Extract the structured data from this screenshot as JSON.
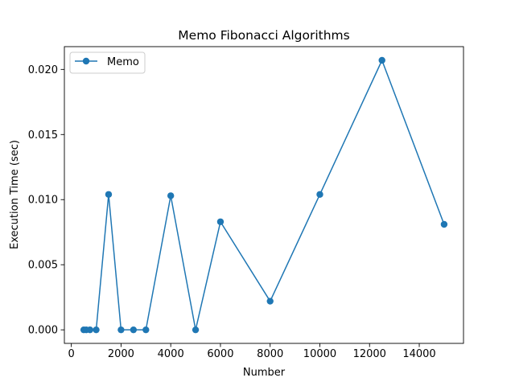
{
  "chart_data": {
    "type": "line",
    "title": "Memo Fibonacci Algorithms",
    "xlabel": "Number",
    "ylabel": "Execution Time (sec)",
    "xlim": [
      -280,
      15780
    ],
    "ylim": [
      -0.00104,
      0.02175
    ],
    "xticks": [
      0,
      2000,
      4000,
      6000,
      8000,
      10000,
      12000,
      14000
    ],
    "xtick_labels": [
      "0",
      "2000",
      "4000",
      "6000",
      "8000",
      "10000",
      "12000",
      "14000"
    ],
    "yticks": [
      0.0,
      0.005,
      0.01,
      0.015,
      0.02
    ],
    "ytick_labels": [
      "0.000",
      "0.005",
      "0.010",
      "0.015",
      "0.020"
    ],
    "grid": false,
    "legend_position": "top-left",
    "series": [
      {
        "name": "Memo",
        "color": "#1f77b4",
        "marker": "circle",
        "x": [
          500,
          600,
          750,
          1000,
          1500,
          2000,
          2500,
          3000,
          4000,
          5000,
          6000,
          8000,
          10000,
          12500,
          15000
        ],
        "y": [
          0.0,
          0.0,
          0.0,
          0.0,
          0.0104,
          0.0,
          0.0,
          0.0,
          0.0103,
          0.0,
          0.0083,
          0.0022,
          0.0104,
          0.0207,
          0.0081
        ]
      }
    ]
  }
}
